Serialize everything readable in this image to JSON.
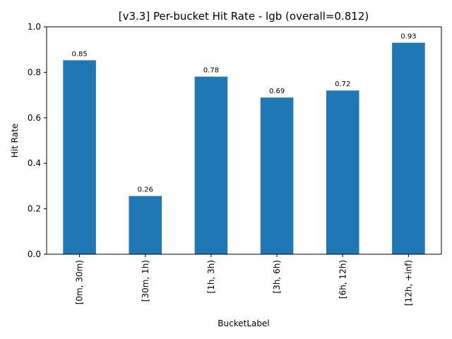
{
  "chart_data": {
    "type": "bar",
    "title": "[v3.3] Per-bucket Hit Rate - lgb (overall=0.812)",
    "xlabel": "BucketLabel",
    "ylabel": "Hit Rate",
    "categories": [
      "[0m, 30m)",
      "[30m, 1h)",
      "[1h, 3h)",
      "[3h, 6h)",
      "[6h, 12h)",
      "[12h, +inf)"
    ],
    "values": [
      0.853,
      0.256,
      0.781,
      0.689,
      0.72,
      0.93
    ],
    "data_labels": [
      "0.85",
      "0.26",
      "0.78",
      "0.69",
      "0.72",
      "0.93"
    ],
    "ylim": [
      0,
      1.0
    ],
    "yticks": [
      0.0,
      0.2,
      0.4,
      0.6,
      0.8,
      1.0
    ],
    "ytick_labels": [
      "0.0",
      "0.2",
      "0.4",
      "0.6",
      "0.8",
      "1.0"
    ],
    "grid": false,
    "bar_color": "#1f77b4"
  }
}
